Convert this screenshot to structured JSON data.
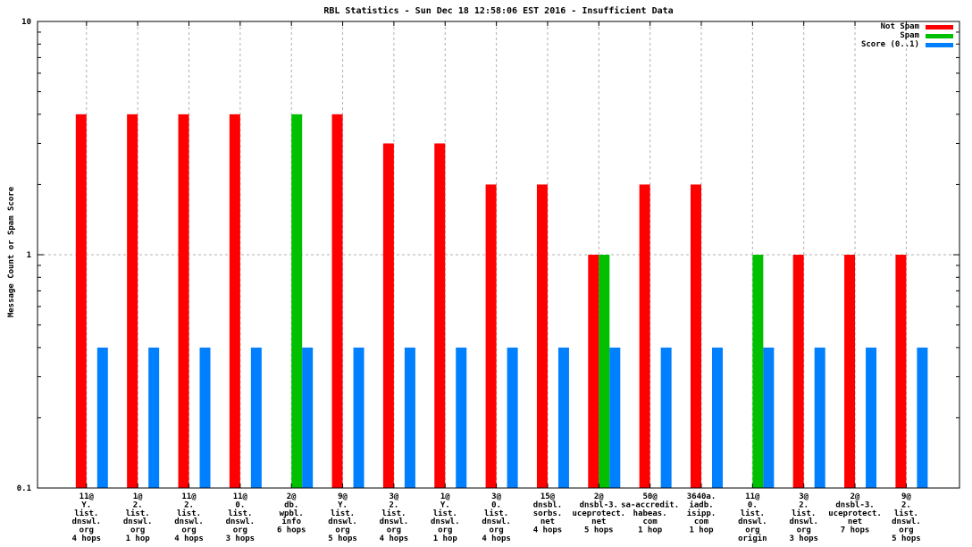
{
  "chart_data": {
    "type": "bar",
    "title": "RBL Statistics - Sun Dec 18 12:58:06 EST 2016 - Insufficient Data",
    "ylabel": "Message Count or Spam Score",
    "y_scale": "log",
    "ylim": [
      0.1,
      10
    ],
    "y_major_ticks": [
      {
        "value": 10,
        "label": "10"
      },
      {
        "value": 1,
        "label": "1"
      },
      {
        "value": 0.1,
        "label": "0.1"
      }
    ],
    "grid": {
      "horizontal_at_values": [
        1
      ],
      "vertical": "at-every-category",
      "style": "dashed-gray"
    },
    "colors": {
      "not_spam": "#ff0000",
      "spam": "#00c000",
      "score": "#0080ff",
      "grid": "#b0b0b0",
      "axis": "#000000"
    },
    "legend": {
      "position": "top-right",
      "entries": [
        {
          "name": "Not Spam",
          "series": "not_spam",
          "color": "#ff0000"
        },
        {
          "name": "Spam",
          "series": "spam",
          "color": "#00c000"
        },
        {
          "name": "Score (0..1)",
          "series": "score",
          "color": "#0080ff"
        }
      ]
    },
    "series_order": [
      "not_spam",
      "spam",
      "score"
    ],
    "groups": [
      {
        "label_lines": [
          "11@",
          "Y.",
          "list.",
          "dnswl.",
          "org",
          "4 hops"
        ],
        "not_spam": 4,
        "spam": null,
        "score": 0.4
      },
      {
        "label_lines": [
          "1@",
          "2.",
          "list.",
          "dnswl.",
          "org",
          "1 hop"
        ],
        "not_spam": 4,
        "spam": null,
        "score": 0.4
      },
      {
        "label_lines": [
          "11@",
          "2.",
          "list.",
          "dnswl.",
          "org",
          "4 hops"
        ],
        "not_spam": 4,
        "spam": null,
        "score": 0.4
      },
      {
        "label_lines": [
          "11@",
          "0.",
          "list.",
          "dnswl.",
          "org",
          "3 hops"
        ],
        "not_spam": 4,
        "spam": null,
        "score": 0.4
      },
      {
        "label_lines": [
          "2@",
          "db.",
          "wpbl.",
          "info",
          "6 hops"
        ],
        "not_spam": null,
        "spam": 4,
        "score": 0.4
      },
      {
        "label_lines": [
          "9@",
          "Y.",
          "list.",
          "dnswl.",
          "org",
          "5 hops"
        ],
        "not_spam": 4,
        "spam": null,
        "score": 0.4
      },
      {
        "label_lines": [
          "3@",
          "2.",
          "list.",
          "dnswl.",
          "org",
          "4 hops"
        ],
        "not_spam": 3,
        "spam": null,
        "score": 0.4
      },
      {
        "label_lines": [
          "1@",
          "Y.",
          "list.",
          "dnswl.",
          "org",
          "1 hop"
        ],
        "not_spam": 3,
        "spam": null,
        "score": 0.4
      },
      {
        "label_lines": [
          "3@",
          "0.",
          "list.",
          "dnswl.",
          "org",
          "4 hops"
        ],
        "not_spam": 2,
        "spam": null,
        "score": 0.4
      },
      {
        "label_lines": [
          "15@",
          "dnsbl.",
          "sorbs.",
          "net",
          "4 hops"
        ],
        "not_spam": 2,
        "spam": null,
        "score": 0.4
      },
      {
        "label_lines": [
          "2@",
          "dnsbl-3.",
          "uceprotect.",
          "net",
          "5 hops"
        ],
        "not_spam": 1,
        "spam": 1,
        "score": 0.4
      },
      {
        "label_lines": [
          "50@",
          "sa-accredit.",
          "habeas.",
          "com",
          "1 hop"
        ],
        "not_spam": 2,
        "spam": null,
        "score": 0.4
      },
      {
        "label_lines": [
          "3640a.",
          "iadb.",
          "isipp.",
          "com",
          "1 hop"
        ],
        "not_spam": 2,
        "spam": null,
        "score": 0.4
      },
      {
        "label_lines": [
          "11@",
          "0.",
          "list.",
          "dnswl.",
          "org",
          "origin"
        ],
        "not_spam": null,
        "spam": 1,
        "score": 0.4
      },
      {
        "label_lines": [
          "3@",
          "2.",
          "list.",
          "dnswl.",
          "org",
          "3 hops"
        ],
        "not_spam": 1,
        "spam": null,
        "score": 0.4
      },
      {
        "label_lines": [
          "2@",
          "dnsbl-3.",
          "uceprotect.",
          "net",
          "7 hops"
        ],
        "not_spam": 1,
        "spam": null,
        "score": 0.4
      },
      {
        "label_lines": [
          "9@",
          "2.",
          "list.",
          "dnswl.",
          "org",
          "5 hops"
        ],
        "not_spam": 1,
        "spam": null,
        "score": 0.4
      }
    ]
  }
}
